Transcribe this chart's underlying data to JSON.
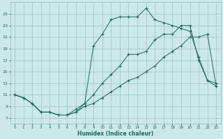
{
  "xlabel": "Humidex (Indice chaleur)",
  "background_color": "#cce8e8",
  "grid_color": "#99bbbb",
  "line_color": "#1a6b60",
  "xlim": [
    -0.5,
    23.5
  ],
  "ylim": [
    6,
    27
  ],
  "yticks": [
    7,
    9,
    11,
    13,
    15,
    17,
    19,
    21,
    23,
    25
  ],
  "xticks": [
    0,
    1,
    2,
    3,
    4,
    5,
    6,
    7,
    8,
    9,
    10,
    11,
    12,
    13,
    14,
    15,
    16,
    17,
    18,
    19,
    20,
    21,
    22,
    23
  ],
  "line1_x": [
    0,
    1,
    2,
    3,
    4,
    5,
    6,
    7,
    8,
    9,
    10,
    11,
    12,
    13,
    14,
    15,
    16,
    17,
    18,
    19,
    20,
    21,
    22,
    23
  ],
  "line1_y": [
    11.0,
    10.5,
    9.5,
    8.0,
    8.0,
    7.5,
    7.5,
    8.0,
    9.0,
    9.5,
    10.5,
    11.5,
    12.5,
    13.5,
    14.0,
    15.0,
    16.0,
    17.5,
    18.5,
    19.5,
    21.0,
    21.0,
    21.5,
    12.5
  ],
  "line2_x": [
    0,
    1,
    2,
    3,
    4,
    5,
    6,
    7,
    8,
    9,
    10,
    11,
    12,
    13,
    14,
    15,
    16,
    17,
    18,
    19,
    20,
    21,
    22,
    23
  ],
  "line2_y": [
    11.0,
    10.5,
    9.5,
    8.0,
    8.0,
    7.5,
    7.5,
    8.5,
    9.5,
    11.0,
    13.0,
    14.5,
    16.0,
    18.0,
    18.0,
    18.5,
    20.5,
    21.5,
    21.5,
    23.0,
    23.0,
    17.0,
    13.5,
    13.0
  ],
  "line3_x": [
    0,
    1,
    2,
    3,
    4,
    5,
    6,
    7,
    8,
    9,
    10,
    11,
    12,
    13,
    14,
    15,
    16,
    17,
    18,
    19,
    20,
    21,
    22,
    23
  ],
  "line3_y": [
    11.0,
    10.5,
    9.5,
    8.0,
    8.0,
    7.5,
    7.5,
    8.0,
    9.5,
    19.5,
    21.5,
    24.0,
    24.5,
    24.5,
    24.5,
    26.0,
    24.0,
    23.5,
    23.0,
    22.5,
    22.0,
    17.5,
    13.5,
    12.5
  ]
}
